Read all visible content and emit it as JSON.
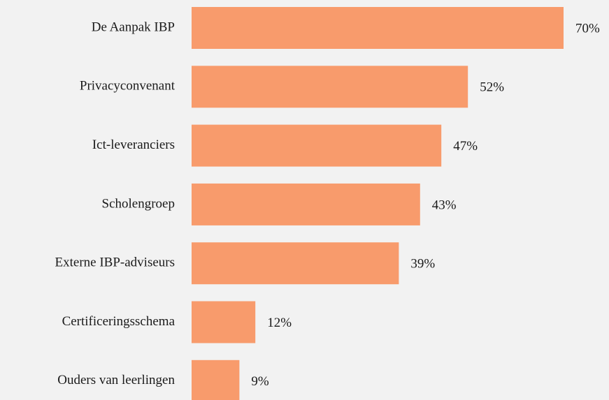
{
  "chart_data": {
    "type": "bar",
    "orientation": "horizontal",
    "categories": [
      "De Aanpak IBP",
      "Privacyconvenant",
      "Ict-leveranciers",
      "Scholengroep",
      "Externe IBP-adviseurs",
      "Certificeringsschema",
      "Ouders van leerlingen"
    ],
    "values": [
      70,
      52,
      47,
      43,
      39,
      12,
      9
    ],
    "value_labels": [
      "70%",
      "52%",
      "47%",
      "43%",
      "39%",
      "12%",
      "9%"
    ],
    "color": "#f89b6c"
  }
}
